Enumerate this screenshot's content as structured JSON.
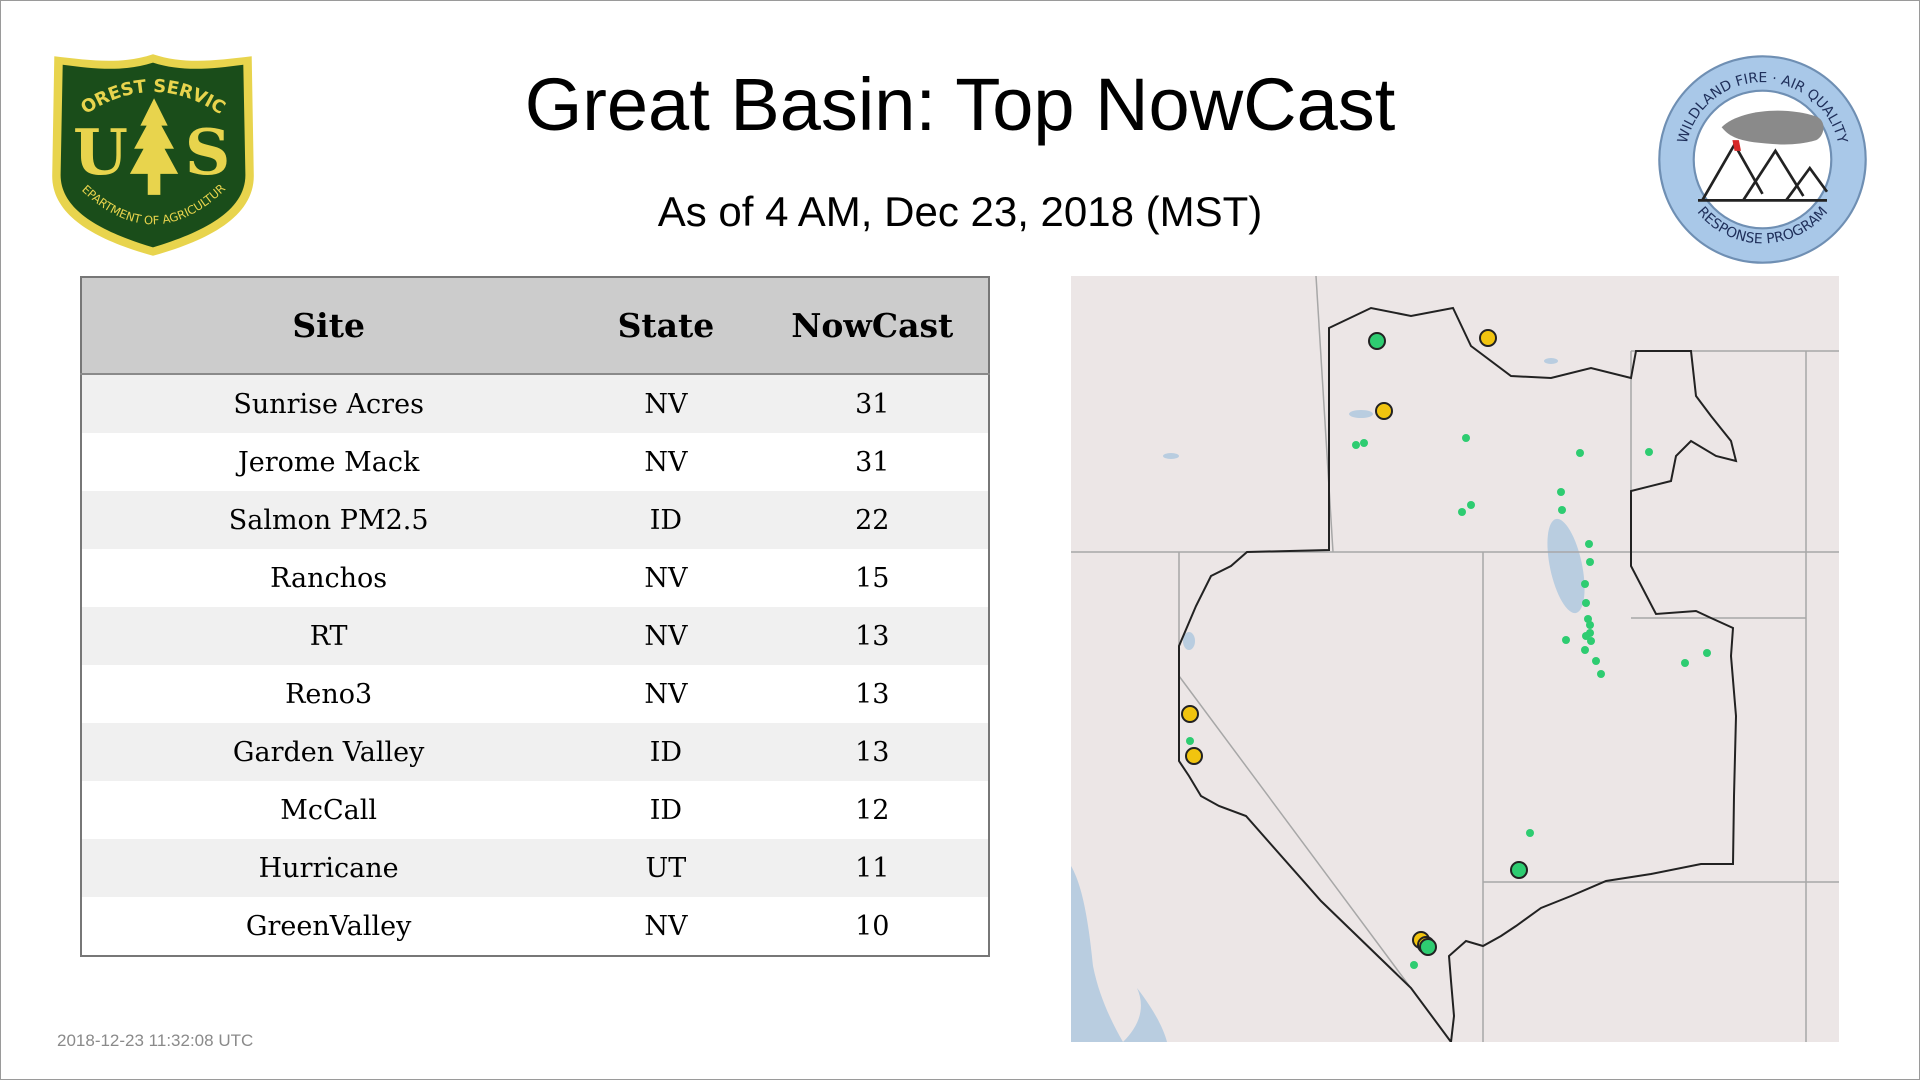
{
  "page": {
    "title": "Great Basin: Top NowCast",
    "subtitle": "As of  4 AM, Dec 23, 2018 (MST)",
    "timestamp": "2018-12-23 11:32:08 UTC"
  },
  "logos": {
    "usfs": {
      "top_text": "FOREST SERVICE",
      "letter_left": "U",
      "letter_right": "S",
      "bottom_text": "DEPARTMENT OF AGRICULTURE"
    },
    "wfaq": {
      "top_text": "WILDLAND FIRE · AIR QUALITY",
      "bottom_text": "RESPONSE PROGRAM"
    }
  },
  "table": {
    "headers": {
      "site": "Site",
      "state": "State",
      "nowcast": "NowCast"
    },
    "rows": [
      {
        "site": "Sunrise Acres",
        "state": "NV",
        "nowcast": "31"
      },
      {
        "site": "Jerome Mack",
        "state": "NV",
        "nowcast": "31"
      },
      {
        "site": "Salmon PM2.5",
        "state": "ID",
        "nowcast": "22"
      },
      {
        "site": "Ranchos",
        "state": "NV",
        "nowcast": "15"
      },
      {
        "site": "RT",
        "state": "NV",
        "nowcast": "13"
      },
      {
        "site": "Reno3",
        "state": "NV",
        "nowcast": "13"
      },
      {
        "site": "Garden Valley",
        "state": "ID",
        "nowcast": "13"
      },
      {
        "site": "McCall",
        "state": "ID",
        "nowcast": "12"
      },
      {
        "site": "Hurricane",
        "state": "UT",
        "nowcast": "11"
      },
      {
        "site": "GreenValley",
        "state": "NV",
        "nowcast": "10"
      }
    ]
  },
  "colors": {
    "aqi_good": "#2ecc71",
    "aqi_moderate": "#f1c40f",
    "usfs_green": "#1a4d1a",
    "usfs_gold": "#e8d44d",
    "wfaq_blue": "#a9c8e8",
    "map_land": "#ece6e6",
    "map_water": "#a9c4dd"
  }
}
